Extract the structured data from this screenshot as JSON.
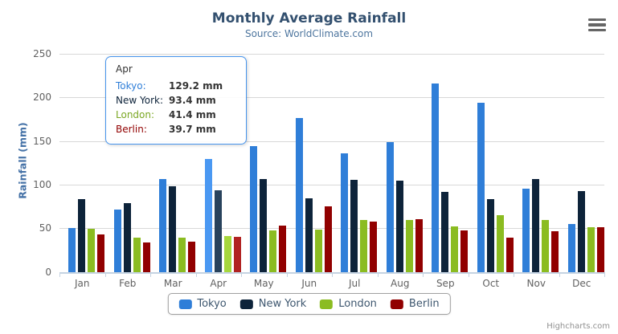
{
  "header": {
    "title": "Monthly Average Rainfall",
    "subtitle": "Source: WorldClimate.com"
  },
  "context_menu": {
    "icon": "hamburger-menu-icon"
  },
  "chart_data": {
    "type": "bar",
    "title": "Monthly Average Rainfall",
    "subtitle": "Source: WorldClimate.com",
    "xlabel": "",
    "ylabel": "Rainfall (mm)",
    "ylim": [
      0,
      250
    ],
    "yticks": [
      0,
      50,
      100,
      150,
      200,
      250
    ],
    "grid": true,
    "legend_position": "bottom-center",
    "categories": [
      "Jan",
      "Feb",
      "Mar",
      "Apr",
      "May",
      "Jun",
      "Jul",
      "Aug",
      "Sep",
      "Oct",
      "Nov",
      "Dec"
    ],
    "series": [
      {
        "name": "Tokyo",
        "color": "#2f7ed8",
        "hover_color": "#4a98f2",
        "values": [
          49.9,
          71.5,
          106.4,
          129.2,
          144.0,
          176.0,
          135.6,
          148.5,
          216.4,
          194.1,
          95.6,
          54.4
        ]
      },
      {
        "name": "New York",
        "color": "#0d233a",
        "hover_color": "#28425c",
        "values": [
          83.6,
          78.8,
          98.5,
          93.4,
          106.0,
          84.5,
          105.0,
          104.3,
          91.2,
          83.5,
          106.6,
          92.3
        ]
      },
      {
        "name": "London",
        "color": "#8bbc21",
        "hover_color": "#a6d73c",
        "values": [
          48.9,
          38.8,
          39.3,
          41.4,
          47.0,
          48.3,
          59.0,
          59.6,
          52.4,
          65.2,
          59.3,
          51.2
        ]
      },
      {
        "name": "Berlin",
        "color": "#910000",
        "hover_color": "#b12222",
        "values": [
          42.4,
          33.2,
          34.5,
          39.7,
          52.6,
          75.5,
          57.4,
          60.4,
          47.6,
          39.1,
          46.8,
          51.1
        ]
      }
    ],
    "hovered_category_index": 3
  },
  "tooltip": {
    "header": "Apr",
    "rows": [
      {
        "name": "Tokyo:",
        "value": "129.2 mm",
        "color": "#2f7ed8"
      },
      {
        "name": "New York:",
        "value": "93.4 mm",
        "color": "#0d233a"
      },
      {
        "name": "London:",
        "value": "41.4 mm",
        "color": "#7aa722"
      },
      {
        "name": "Berlin:",
        "value": "39.7 mm",
        "color": "#910000"
      }
    ]
  },
  "legend": {
    "items": [
      {
        "label": "Tokyo",
        "color": "#2f7ed8"
      },
      {
        "label": "New York",
        "color": "#0d233a"
      },
      {
        "label": "London",
        "color": "#8bbc21"
      },
      {
        "label": "Berlin",
        "color": "#910000"
      }
    ]
  },
  "credits": "Highcharts.com"
}
